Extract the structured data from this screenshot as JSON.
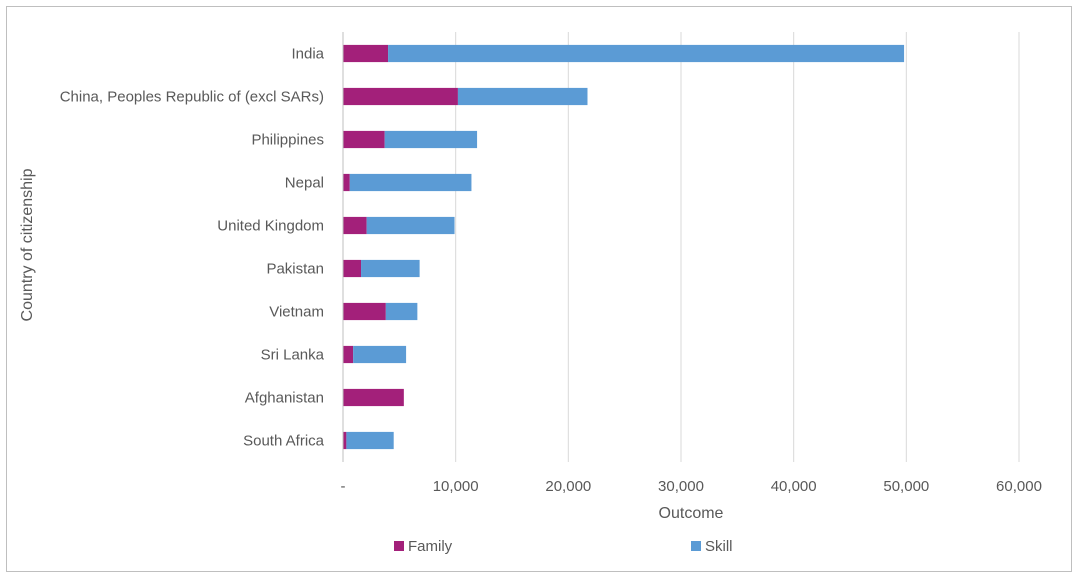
{
  "chart_data": {
    "type": "bar",
    "orientation": "horizontal",
    "stacked": true,
    "title": "",
    "xlabel": "Outcome",
    "ylabel": "Country of citizenship",
    "xlim": [
      0,
      60000
    ],
    "x_ticks": [
      0,
      10000,
      20000,
      30000,
      40000,
      50000,
      60000
    ],
    "x_tick_labels": [
      "-",
      "10,000",
      "20,000",
      "30,000",
      "40,000",
      "50,000",
      "60,000"
    ],
    "grid": "vertical",
    "legend_position": "bottom",
    "categories": [
      "India",
      "China, Peoples Republic of (excl SARs)",
      "Philippines",
      "Nepal",
      "United Kingdom",
      "Pakistan",
      "Vietnam",
      "Sri Lanka",
      "Afghanistan",
      "South Africa"
    ],
    "series": [
      {
        "name": "Family",
        "color": "#a3207a",
        "values": [
          4000,
          10200,
          3700,
          600,
          2100,
          1600,
          3800,
          900,
          5400,
          300
        ]
      },
      {
        "name": "Skill",
        "color": "#5b9bd5",
        "values": [
          45800,
          11500,
          8200,
          10800,
          7800,
          5200,
          2800,
          4700,
          0,
          4200
        ]
      }
    ]
  }
}
